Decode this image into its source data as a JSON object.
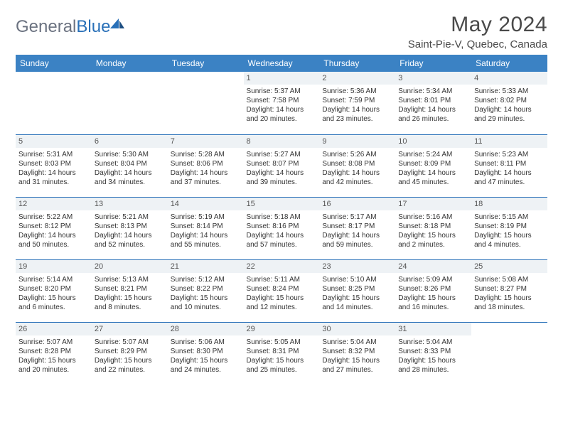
{
  "brand": {
    "name_a": "General",
    "name_b": "Blue"
  },
  "title": "May 2024",
  "location": "Saint-Pie-V, Quebec, Canada",
  "colors": {
    "header_bg": "#3b82c4",
    "header_text": "#ffffff",
    "row_divider": "#2970b8",
    "daynum_bg": "#eef2f5",
    "text": "#333333",
    "brand_gray": "#6b7280",
    "brand_blue": "#2970b8"
  },
  "day_headers": [
    "Sunday",
    "Monday",
    "Tuesday",
    "Wednesday",
    "Thursday",
    "Friday",
    "Saturday"
  ],
  "weeks": [
    [
      {
        "n": "",
        "sr": "",
        "ss": "",
        "d1": "",
        "d2": ""
      },
      {
        "n": "",
        "sr": "",
        "ss": "",
        "d1": "",
        "d2": ""
      },
      {
        "n": "",
        "sr": "",
        "ss": "",
        "d1": "",
        "d2": ""
      },
      {
        "n": "1",
        "sr": "Sunrise: 5:37 AM",
        "ss": "Sunset: 7:58 PM",
        "d1": "Daylight: 14 hours",
        "d2": "and 20 minutes."
      },
      {
        "n": "2",
        "sr": "Sunrise: 5:36 AM",
        "ss": "Sunset: 7:59 PM",
        "d1": "Daylight: 14 hours",
        "d2": "and 23 minutes."
      },
      {
        "n": "3",
        "sr": "Sunrise: 5:34 AM",
        "ss": "Sunset: 8:01 PM",
        "d1": "Daylight: 14 hours",
        "d2": "and 26 minutes."
      },
      {
        "n": "4",
        "sr": "Sunrise: 5:33 AM",
        "ss": "Sunset: 8:02 PM",
        "d1": "Daylight: 14 hours",
        "d2": "and 29 minutes."
      }
    ],
    [
      {
        "n": "5",
        "sr": "Sunrise: 5:31 AM",
        "ss": "Sunset: 8:03 PM",
        "d1": "Daylight: 14 hours",
        "d2": "and 31 minutes."
      },
      {
        "n": "6",
        "sr": "Sunrise: 5:30 AM",
        "ss": "Sunset: 8:04 PM",
        "d1": "Daylight: 14 hours",
        "d2": "and 34 minutes."
      },
      {
        "n": "7",
        "sr": "Sunrise: 5:28 AM",
        "ss": "Sunset: 8:06 PM",
        "d1": "Daylight: 14 hours",
        "d2": "and 37 minutes."
      },
      {
        "n": "8",
        "sr": "Sunrise: 5:27 AM",
        "ss": "Sunset: 8:07 PM",
        "d1": "Daylight: 14 hours",
        "d2": "and 39 minutes."
      },
      {
        "n": "9",
        "sr": "Sunrise: 5:26 AM",
        "ss": "Sunset: 8:08 PM",
        "d1": "Daylight: 14 hours",
        "d2": "and 42 minutes."
      },
      {
        "n": "10",
        "sr": "Sunrise: 5:24 AM",
        "ss": "Sunset: 8:09 PM",
        "d1": "Daylight: 14 hours",
        "d2": "and 45 minutes."
      },
      {
        "n": "11",
        "sr": "Sunrise: 5:23 AM",
        "ss": "Sunset: 8:11 PM",
        "d1": "Daylight: 14 hours",
        "d2": "and 47 minutes."
      }
    ],
    [
      {
        "n": "12",
        "sr": "Sunrise: 5:22 AM",
        "ss": "Sunset: 8:12 PM",
        "d1": "Daylight: 14 hours",
        "d2": "and 50 minutes."
      },
      {
        "n": "13",
        "sr": "Sunrise: 5:21 AM",
        "ss": "Sunset: 8:13 PM",
        "d1": "Daylight: 14 hours",
        "d2": "and 52 minutes."
      },
      {
        "n": "14",
        "sr": "Sunrise: 5:19 AM",
        "ss": "Sunset: 8:14 PM",
        "d1": "Daylight: 14 hours",
        "d2": "and 55 minutes."
      },
      {
        "n": "15",
        "sr": "Sunrise: 5:18 AM",
        "ss": "Sunset: 8:16 PM",
        "d1": "Daylight: 14 hours",
        "d2": "and 57 minutes."
      },
      {
        "n": "16",
        "sr": "Sunrise: 5:17 AM",
        "ss": "Sunset: 8:17 PM",
        "d1": "Daylight: 14 hours",
        "d2": "and 59 minutes."
      },
      {
        "n": "17",
        "sr": "Sunrise: 5:16 AM",
        "ss": "Sunset: 8:18 PM",
        "d1": "Daylight: 15 hours",
        "d2": "and 2 minutes."
      },
      {
        "n": "18",
        "sr": "Sunrise: 5:15 AM",
        "ss": "Sunset: 8:19 PM",
        "d1": "Daylight: 15 hours",
        "d2": "and 4 minutes."
      }
    ],
    [
      {
        "n": "19",
        "sr": "Sunrise: 5:14 AM",
        "ss": "Sunset: 8:20 PM",
        "d1": "Daylight: 15 hours",
        "d2": "and 6 minutes."
      },
      {
        "n": "20",
        "sr": "Sunrise: 5:13 AM",
        "ss": "Sunset: 8:21 PM",
        "d1": "Daylight: 15 hours",
        "d2": "and 8 minutes."
      },
      {
        "n": "21",
        "sr": "Sunrise: 5:12 AM",
        "ss": "Sunset: 8:22 PM",
        "d1": "Daylight: 15 hours",
        "d2": "and 10 minutes."
      },
      {
        "n": "22",
        "sr": "Sunrise: 5:11 AM",
        "ss": "Sunset: 8:24 PM",
        "d1": "Daylight: 15 hours",
        "d2": "and 12 minutes."
      },
      {
        "n": "23",
        "sr": "Sunrise: 5:10 AM",
        "ss": "Sunset: 8:25 PM",
        "d1": "Daylight: 15 hours",
        "d2": "and 14 minutes."
      },
      {
        "n": "24",
        "sr": "Sunrise: 5:09 AM",
        "ss": "Sunset: 8:26 PM",
        "d1": "Daylight: 15 hours",
        "d2": "and 16 minutes."
      },
      {
        "n": "25",
        "sr": "Sunrise: 5:08 AM",
        "ss": "Sunset: 8:27 PM",
        "d1": "Daylight: 15 hours",
        "d2": "and 18 minutes."
      }
    ],
    [
      {
        "n": "26",
        "sr": "Sunrise: 5:07 AM",
        "ss": "Sunset: 8:28 PM",
        "d1": "Daylight: 15 hours",
        "d2": "and 20 minutes."
      },
      {
        "n": "27",
        "sr": "Sunrise: 5:07 AM",
        "ss": "Sunset: 8:29 PM",
        "d1": "Daylight: 15 hours",
        "d2": "and 22 minutes."
      },
      {
        "n": "28",
        "sr": "Sunrise: 5:06 AM",
        "ss": "Sunset: 8:30 PM",
        "d1": "Daylight: 15 hours",
        "d2": "and 24 minutes."
      },
      {
        "n": "29",
        "sr": "Sunrise: 5:05 AM",
        "ss": "Sunset: 8:31 PM",
        "d1": "Daylight: 15 hours",
        "d2": "and 25 minutes."
      },
      {
        "n": "30",
        "sr": "Sunrise: 5:04 AM",
        "ss": "Sunset: 8:32 PM",
        "d1": "Daylight: 15 hours",
        "d2": "and 27 minutes."
      },
      {
        "n": "31",
        "sr": "Sunrise: 5:04 AM",
        "ss": "Sunset: 8:33 PM",
        "d1": "Daylight: 15 hours",
        "d2": "and 28 minutes."
      },
      {
        "n": "",
        "sr": "",
        "ss": "",
        "d1": "",
        "d2": ""
      }
    ]
  ]
}
